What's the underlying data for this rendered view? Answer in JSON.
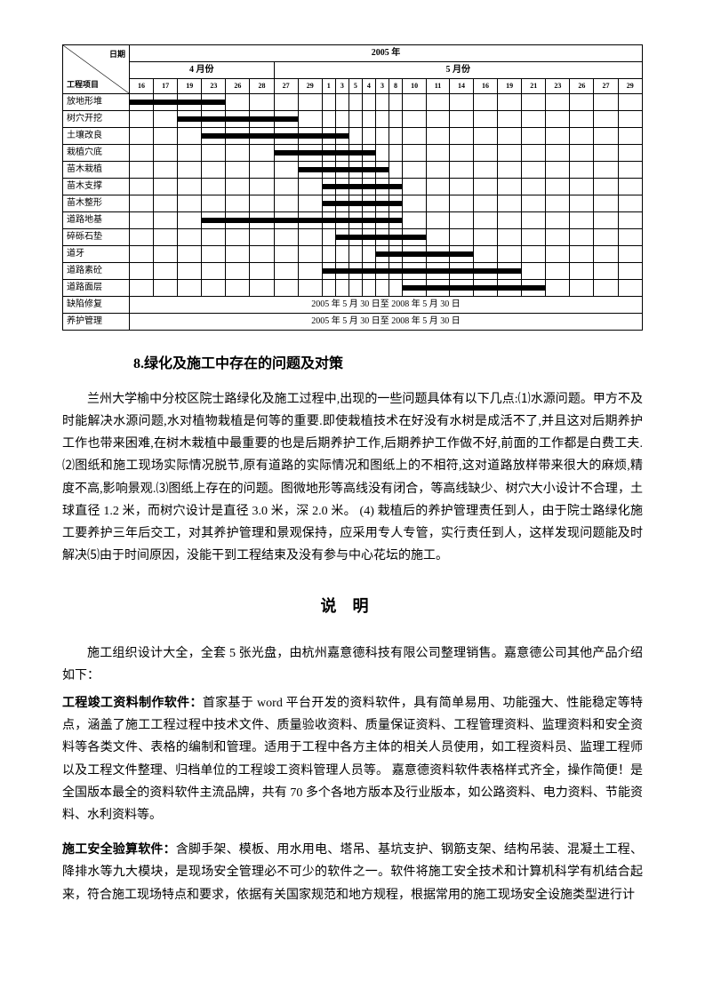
{
  "gantt": {
    "year_header": "2005 年",
    "diag_top": "日期",
    "diag_bot": "工程项目",
    "months": [
      "4 月份",
      "5 月份"
    ],
    "april_days": [
      "16",
      "17",
      "19",
      "23",
      "26",
      "28"
    ],
    "may_days": [
      "27",
      "29",
      "1",
      "3",
      "5",
      "4",
      "3",
      "8",
      "10",
      "11",
      "14",
      "16",
      "19",
      "21",
      "23",
      "26",
      "27",
      "29"
    ],
    "rows": [
      {
        "label": "放地形堆",
        "bar_start": 0,
        "bar_end": 3
      },
      {
        "label": "树穴开挖",
        "bar_start": 2,
        "bar_end": 6
      },
      {
        "label": "土壤改良",
        "bar_start": 3,
        "bar_end": 9
      },
      {
        "label": "栽植穴底",
        "bar_start": 6,
        "bar_end": 11
      },
      {
        "label": "苗木栽植",
        "bar_start": 7,
        "bar_end": 12
      },
      {
        "label": "苗木支撑",
        "bar_start": 8,
        "bar_end": 13
      },
      {
        "label": "苗木整形",
        "bar_start": 8,
        "bar_end": 13
      },
      {
        "label": "道路地基",
        "bar_start": 3,
        "bar_end": 13
      },
      {
        "label": "碎砾石垫",
        "bar_start": 9,
        "bar_end": 14
      },
      {
        "label": "道牙",
        "bar_start": 12,
        "bar_end": 16
      },
      {
        "label": "道路素砼",
        "bar_start": 8,
        "bar_end": 18
      },
      {
        "label": "道路面层",
        "bar_start": 14,
        "bar_end": 19
      }
    ],
    "merged_rows": [
      {
        "label": "缺陷修复",
        "text": "2005 年 5 月 30 日至 2008 年 5 月 30 日"
      },
      {
        "label": "养护管理",
        "text": "2005 年 5 月 30 日至 2008 年 5 月 30 日"
      }
    ],
    "total_cols": 24,
    "bar_color": "#000000",
    "grid_color": "#000000"
  },
  "section8": {
    "title": "8.绿化及施工中存在的问题及对策",
    "paragraph": "兰州大学榆中分校区院士路绿化及施工过程中,出现的一些问题具体有以下几点:⑴水源问题。甲方不及时能解决水源问题,水对植物栽植是何等的重要.即使栽植技术在好没有水树是成活不了,并且这对后期养护工作也带来困难,在树木栽植中最重要的也是后期养护工作,后期养护工作做不好,前面的工作都是白费工夫. ⑵图纸和施工现场实际情况脱节,原有道路的实际情况和图纸上的不相符,这对道路放样带来很大的麻烦,精度不高,影响景观.⑶图纸上存在的问题。图微地形等高线没有闭合，等高线缺少、树穴大小设计不合理，土球直径 1.2 米，而树穴设计是直径 3.0 米，深 2.0 米。 (4) 栽植后的养护管理责任到人，由于院士路绿化施工要养护三年后交工，对其养护管理和景观保持，应采用专人专管，实行责任到人，这样发现问题能及时解决⑸由于时间原因，没能干到工程结束及没有参与中心花坛的施工。"
  },
  "shuoming": {
    "title": "说明",
    "intro": "施工组织设计大全，全套 5 张光盘，由杭州嘉意德科技有限公司整理销售。嘉意德公司其他产品介绍如下：",
    "products": [
      {
        "lead": "工程竣工资料制作软件：",
        "text": "首家基于 word 平台开发的资料软件，具有简单易用、功能强大、性能稳定等特点，涵盖了施工工程过程中技术文件、质量验收资料、质量保证资料、工程管理资料、监理资料和安全资料等各类文件、表格的编制和管理。适用于工程中各方主体的相关人员使用，如工程资料员、监理工程师以及工程文件整理、归档单位的工程竣工资料管理人员等。 嘉意德资料软件表格样式齐全，操作简便！是全国版本最全的资料软件主流品牌，共有 70 多个各地方版本及行业版本，如公路资料、电力资料、节能资料、水利资料等。"
      },
      {
        "lead": "施工安全验算软件：",
        "text": "含脚手架、模板、用水用电、塔吊、基坑支护、钢筋支架、结构吊装、混凝土工程、降排水等九大模块，是现场安全管理必不可少的软件之一。软件将施工安全技术和计算机科学有机结合起来，符合施工现场特点和要求，依据有关国家规范和地方规程，根据常用的施工现场安全设施类型进行计"
      }
    ]
  }
}
